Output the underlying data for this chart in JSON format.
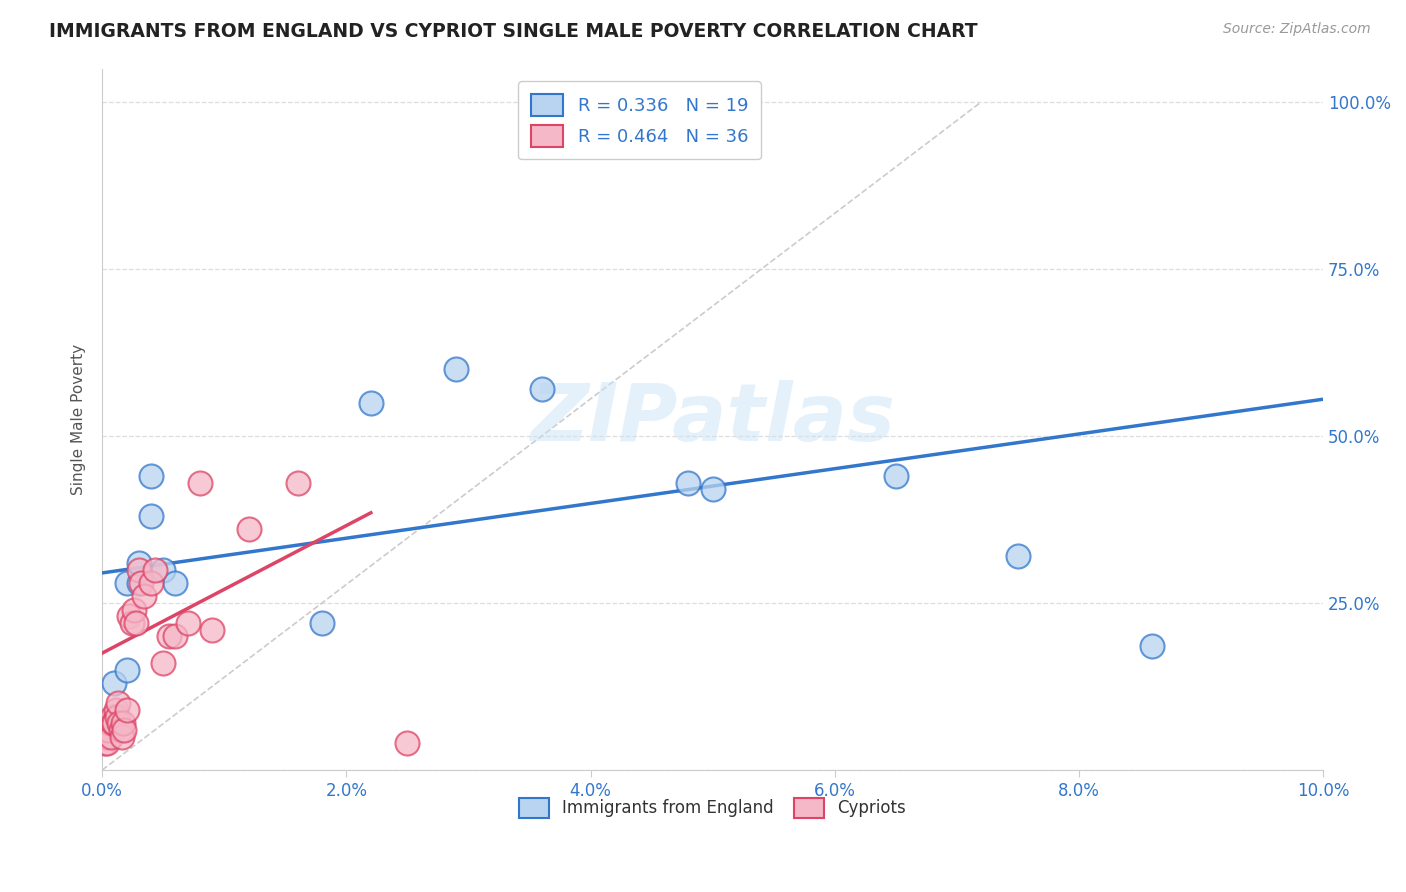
{
  "title": "IMMIGRANTS FROM ENGLAND VS CYPRIOT SINGLE MALE POVERTY CORRELATION CHART",
  "source": "Source: ZipAtlas.com",
  "ylabel": "Single Male Poverty",
  "legend_blue_label": "R = 0.336   N = 19",
  "legend_pink_label": "R = 0.464   N = 36",
  "legend_bottom_blue": "Immigrants from England",
  "legend_bottom_pink": "Cypriots",
  "blue_scatter_x": [
    0.001,
    0.001,
    0.002,
    0.002,
    0.003,
    0.003,
    0.004,
    0.004,
    0.005,
    0.006,
    0.018,
    0.022,
    0.029,
    0.036,
    0.048,
    0.05,
    0.065,
    0.075,
    0.086
  ],
  "blue_scatter_y": [
    0.08,
    0.13,
    0.15,
    0.28,
    0.28,
    0.31,
    0.38,
    0.44,
    0.3,
    0.28,
    0.22,
    0.55,
    0.6,
    0.57,
    0.43,
    0.42,
    0.44,
    0.32,
    0.185
  ],
  "pink_scatter_x": [
    0.0002,
    0.0003,
    0.0004,
    0.0005,
    0.0006,
    0.0007,
    0.0008,
    0.0009,
    0.001,
    0.0011,
    0.0012,
    0.0013,
    0.0014,
    0.0015,
    0.0016,
    0.0017,
    0.0018,
    0.002,
    0.0022,
    0.0024,
    0.0026,
    0.0028,
    0.003,
    0.0032,
    0.0034,
    0.004,
    0.0043,
    0.005,
    0.0055,
    0.006,
    0.007,
    0.008,
    0.009,
    0.012,
    0.016,
    0.025
  ],
  "pink_scatter_y": [
    0.04,
    0.05,
    0.04,
    0.06,
    0.07,
    0.05,
    0.08,
    0.07,
    0.07,
    0.09,
    0.08,
    0.1,
    0.07,
    0.06,
    0.05,
    0.07,
    0.06,
    0.09,
    0.23,
    0.22,
    0.24,
    0.22,
    0.3,
    0.28,
    0.26,
    0.28,
    0.3,
    0.16,
    0.2,
    0.2,
    0.22,
    0.43,
    0.21,
    0.36,
    0.43,
    0.04
  ],
  "blue_line_x": [
    0.0,
    0.1
  ],
  "blue_line_y": [
    0.295,
    0.555
  ],
  "pink_line_x": [
    0.0,
    0.022
  ],
  "pink_line_y": [
    0.175,
    0.385
  ],
  "diag_line_x": [
    0.0,
    0.072
  ],
  "diag_line_y": [
    0.0,
    1.0
  ],
  "blue_color": "#b8d4f0",
  "pink_color": "#f5b8c8",
  "blue_line_color": "#3377cc",
  "pink_line_color": "#dd4466",
  "diag_color": "#cccccc",
  "legend_text_color": "#3377cc",
  "title_color": "#222222",
  "source_color": "#999999",
  "axis_label_color": "#3377cc",
  "background_color": "#ffffff",
  "grid_color": "#dddddd",
  "xlim": [
    0.0,
    0.1
  ],
  "ylim": [
    0.0,
    1.05
  ],
  "watermark": "ZIPatlas"
}
